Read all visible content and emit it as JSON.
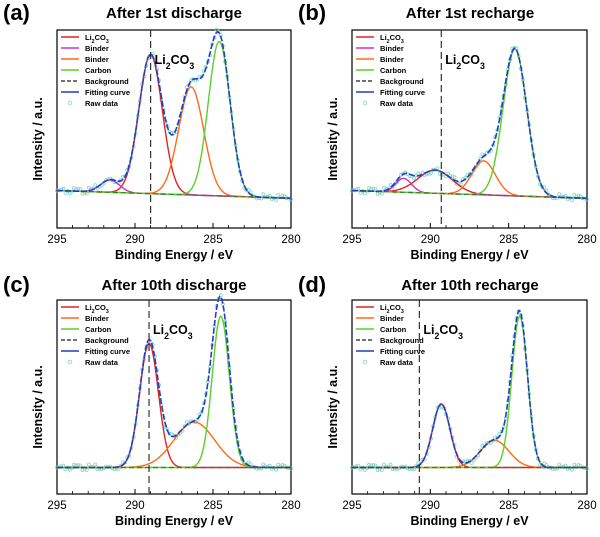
{
  "chart_data": [
    {
      "type": "line",
      "panel_label": "(a)",
      "title": "After 1st discharge",
      "xlabel": "Binding Energy / eV",
      "ylabel": "Intensity / a.u.",
      "xlim": [
        295,
        280
      ],
      "xticks": [
        295,
        290,
        285,
        280
      ],
      "x_reversed": true,
      "annotation": "Li₂CO₃",
      "dashed_marker_x": 289.0,
      "legend_position": "top-left",
      "legend": [
        "Li₂CO₃",
        "Binder",
        "Binder",
        "Carbon",
        "Background",
        "Fitting curve",
        "Raw data"
      ],
      "baseline": {
        "start": 0.1,
        "end": 0.05
      },
      "peaks": [
        {
          "name": "Li₂CO₃",
          "center": 289.0,
          "height": 0.9,
          "width": 0.75,
          "color": "#e32222"
        },
        {
          "name": "Binder",
          "center": 291.6,
          "height": 0.08,
          "width": 0.6,
          "color": "#cc33cc"
        },
        {
          "name": "Binder",
          "center": 286.4,
          "height": 0.7,
          "width": 0.8,
          "color": "#ff6a1a"
        },
        {
          "name": "Carbon",
          "center": 284.6,
          "height": 1.0,
          "width": 0.7,
          "color": "#5bd02a"
        }
      ]
    },
    {
      "type": "line",
      "panel_label": "(b)",
      "title": "After 1st recharge",
      "xlabel": "Binding Energy / eV",
      "ylabel": "Intensity / a.u.",
      "xlim": [
        295,
        280
      ],
      "xticks": [
        295,
        290,
        285,
        280
      ],
      "x_reversed": true,
      "annotation": "Li₂CO₃",
      "dashed_marker_x": 289.3,
      "legend_position": "top-left",
      "legend": [
        "Li₂CO₃",
        "Binder",
        "Binder",
        "Carbon",
        "Background",
        "Fitting curve",
        "Raw data"
      ],
      "baseline": {
        "start": 0.1,
        "end": 0.05
      },
      "peaks": [
        {
          "name": "Li₂CO₃",
          "center": 289.7,
          "height": 0.15,
          "width": 1.1,
          "color": "#e32222"
        },
        {
          "name": "Binder",
          "center": 291.7,
          "height": 0.09,
          "width": 0.5,
          "color": "#cc33cc"
        },
        {
          "name": "Binder",
          "center": 286.6,
          "height": 0.22,
          "width": 0.75,
          "color": "#ff6a1a"
        },
        {
          "name": "Carbon",
          "center": 284.6,
          "height": 0.95,
          "width": 0.75,
          "color": "#5bd02a"
        }
      ]
    },
    {
      "type": "line",
      "panel_label": "(c)",
      "title": "After 10th discharge",
      "xlabel": "Binding Energy / eV",
      "ylabel": "Intensity / a.u.",
      "xlim": [
        295,
        280
      ],
      "xticks": [
        295,
        290,
        285,
        280
      ],
      "x_reversed": true,
      "annotation": "Li₂CO₃",
      "dashed_marker_x": 289.1,
      "legend_position": "top-left",
      "legend": [
        "Li₂CO₃",
        "Binder",
        "Carbon",
        "Background",
        "Fitting curve",
        "Raw data"
      ],
      "baseline": {
        "start": 0.03,
        "end": 0.03
      },
      "peaks": [
        {
          "name": "Li₂CO₃",
          "center": 289.1,
          "height": 0.82,
          "width": 0.6,
          "color": "#e32222"
        },
        {
          "name": "Binder",
          "center": 286.2,
          "height": 0.3,
          "width": 1.3,
          "color": "#ff6a1a"
        },
        {
          "name": "Carbon",
          "center": 284.5,
          "height": 1.0,
          "width": 0.55,
          "color": "#5bd02a"
        }
      ]
    },
    {
      "type": "line",
      "panel_label": "(d)",
      "title": "After 10th recharge",
      "xlabel": "Binding Energy / eV",
      "ylabel": "Intensity / a.u.",
      "xlim": [
        295,
        280
      ],
      "xticks": [
        295,
        290,
        285,
        280
      ],
      "x_reversed": true,
      "annotation": "Li₂CO₃",
      "dashed_marker_x": 290.7,
      "legend_position": "top-left",
      "legend": [
        "Li₂CO₃",
        "Binder",
        "Carbon",
        "Background",
        "Fitting curve",
        "Raw data"
      ],
      "baseline": {
        "start": 0.03,
        "end": 0.03
      },
      "peaks": [
        {
          "name": "Li₂CO₃",
          "center": 289.3,
          "height": 0.42,
          "width": 0.55,
          "color": "#e32222"
        },
        {
          "name": "Binder",
          "center": 285.9,
          "height": 0.18,
          "width": 0.9,
          "color": "#ff6a1a"
        },
        {
          "name": "Carbon",
          "center": 284.3,
          "height": 1.0,
          "width": 0.5,
          "color": "#5bd02a"
        }
      ]
    }
  ],
  "style": {
    "li2co3_color": "#e32222",
    "binder_magenta_color": "#cc33cc",
    "binder_orange_color": "#ff6a1a",
    "carbon_color": "#5bd02a",
    "background_color": "#2e7d32",
    "fitting_color": "#1f3fc4",
    "raw_color": "#7fd6c8",
    "marker_line_color": "#333333"
  }
}
